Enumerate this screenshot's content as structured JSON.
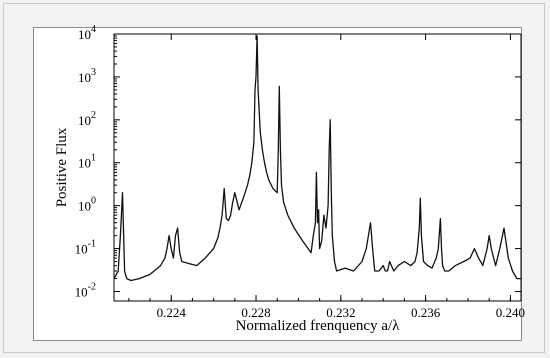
{
  "chart_data": {
    "type": "line",
    "title": "",
    "xlabel": "Normalized frenquency a/λ",
    "ylabel": "Positive Flux",
    "y_scale": "log",
    "xlim": [
      0.2213,
      0.2405
    ],
    "ylim": [
      0.006,
      10000
    ],
    "x_ticks": [
      {
        "value": 0.224,
        "label": "0.224"
      },
      {
        "value": 0.228,
        "label": "0.228"
      },
      {
        "value": 0.232,
        "label": "0.232"
      },
      {
        "value": 0.236,
        "label": "0.236"
      },
      {
        "value": 0.24,
        "label": "0.240"
      }
    ],
    "y_ticks": [
      {
        "value": 0.01,
        "base": "10",
        "exp": "-2"
      },
      {
        "value": 0.1,
        "base": "10",
        "exp": "-1"
      },
      {
        "value": 1,
        "base": "10",
        "exp": "0"
      },
      {
        "value": 10,
        "base": "10",
        "exp": "1"
      },
      {
        "value": 100,
        "base": "10",
        "exp": "2"
      },
      {
        "value": 1000,
        "base": "10",
        "exp": "3"
      },
      {
        "value": 10000,
        "base": "10",
        "exp": "4"
      }
    ],
    "grid": false,
    "series": [
      {
        "x": [
          0.2213,
          0.2215,
          0.2216,
          0.2217,
          0.2218,
          0.2219,
          0.2221,
          0.2225,
          0.223,
          0.2235,
          0.2237,
          0.2238,
          0.2239,
          0.224,
          0.2241,
          0.2242,
          0.2243,
          0.2244,
          0.2245,
          0.2248,
          0.2252,
          0.2256,
          0.226,
          0.2262,
          0.2263,
          0.2264,
          0.2265,
          0.2266,
          0.2267,
          0.2268,
          0.2269,
          0.227,
          0.2272,
          0.2274,
          0.2276,
          0.2277,
          0.2278,
          0.2279,
          0.22795,
          0.228,
          0.22805,
          0.2281,
          0.2282,
          0.2283,
          0.2284,
          0.2285,
          0.2286,
          0.2288,
          0.229,
          0.22905,
          0.2291,
          0.22915,
          0.2292,
          0.2293,
          0.2295,
          0.2298,
          0.2302,
          0.2306,
          0.2307,
          0.2308,
          0.23085,
          0.2309,
          0.23095,
          0.231,
          0.2311,
          0.2312,
          0.2313,
          0.2314,
          0.23145,
          0.2315,
          0.23155,
          0.2316,
          0.2317,
          0.2318,
          0.2322,
          0.2326,
          0.233,
          0.2332,
          0.2334,
          0.2335,
          0.2336,
          0.2338,
          0.234,
          0.2341,
          0.2342,
          0.2343,
          0.2345,
          0.2347,
          0.235,
          0.2353,
          0.2355,
          0.2356,
          0.2357,
          0.23575,
          0.2358,
          0.2359,
          0.2361,
          0.2363,
          0.2365,
          0.2366,
          0.2367,
          0.23675,
          0.2368,
          0.2369,
          0.2371,
          0.2374,
          0.2378,
          0.2381,
          0.2383,
          0.2385,
          0.2387,
          0.2389,
          0.239,
          0.2391,
          0.2393,
          0.2395,
          0.2397,
          0.2399,
          0.2401,
          0.2403,
          0.2405
        ],
        "y": [
          0.02,
          0.03,
          0.2,
          2,
          0.03,
          0.02,
          0.018,
          0.02,
          0.025,
          0.04,
          0.06,
          0.1,
          0.2,
          0.1,
          0.06,
          0.2,
          0.3,
          0.08,
          0.05,
          0.045,
          0.04,
          0.06,
          0.1,
          0.18,
          0.3,
          0.6,
          2.5,
          0.5,
          0.45,
          0.6,
          1.2,
          2,
          0.8,
          1.5,
          3,
          5,
          10,
          30,
          500,
          1000,
          9000,
          500,
          50,
          20,
          10,
          6,
          4,
          2.5,
          2,
          20,
          600,
          20,
          3,
          1.2,
          0.6,
          0.3,
          0.15,
          0.08,
          0.2,
          0.4,
          6,
          0.4,
          0.8,
          0.1,
          0.15,
          0.6,
          0.3,
          1,
          20,
          100,
          2,
          0.2,
          0.05,
          0.03,
          0.035,
          0.03,
          0.05,
          0.1,
          0.4,
          0.1,
          0.03,
          0.03,
          0.04,
          0.03,
          0.03,
          0.05,
          0.03,
          0.04,
          0.05,
          0.04,
          0.05,
          0.08,
          0.3,
          1.5,
          0.2,
          0.05,
          0.04,
          0.035,
          0.06,
          0.1,
          0.5,
          0.1,
          0.04,
          0.03,
          0.03,
          0.04,
          0.05,
          0.06,
          0.1,
          0.06,
          0.04,
          0.1,
          0.2,
          0.1,
          0.04,
          0.1,
          0.3,
          0.06,
          0.03,
          0.02,
          0.02
        ]
      }
    ]
  }
}
